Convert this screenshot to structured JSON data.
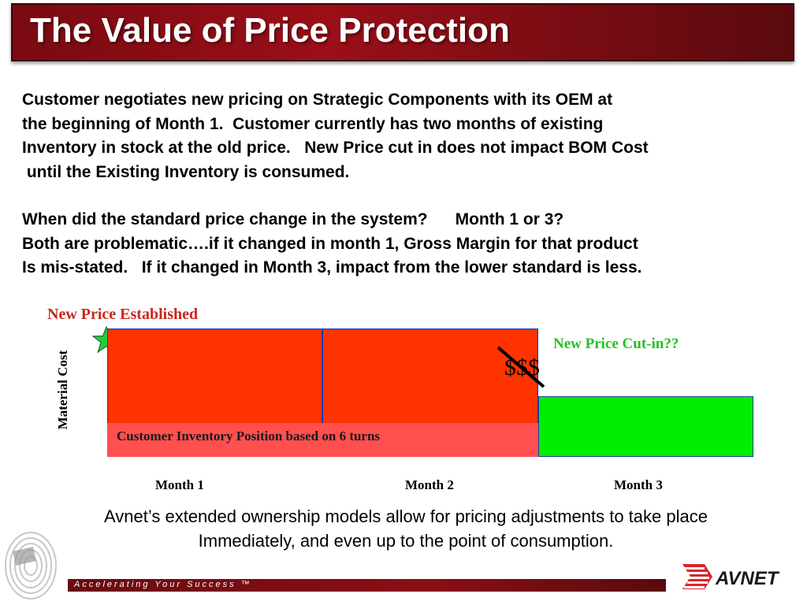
{
  "slide": {
    "title": "The Value of Price Protection",
    "paragraph_lines": [
      "Customer negotiates new pricing on Strategic Components with its OEM at",
      "the beginning of Month 1.  Customer currently has two months of existing",
      "Inventory in stock at the old price.   New Price cut in does not impact BOM Cost",
      " until the Existing Inventory is consumed.",
      "When did the standard price change in the system?      Month 1 or 3?",
      "Both are problematic….if it changed in month 1, Gross Margin for that product",
      "Is mis-stated.   If it changed in Month 3, impact from the lower standard is less."
    ]
  },
  "chart_data": {
    "type": "bar",
    "categories": [
      "Month 1",
      "Month 2",
      "Month 3"
    ],
    "ylabel": "Material Cost",
    "annotations": {
      "new_price": "New Price Established",
      "cut_in": "New Price Cut-in??",
      "dollars": "$$$",
      "inventory": "Customer Inventory Position based on 6 turns"
    },
    "colors": {
      "old_price": "#ff3300",
      "new_price": "#00ee00",
      "inventory_band": "#ff4f4f",
      "star": "#22cc44"
    }
  },
  "bottom": {
    "lines": [
      "Avnet’s extended ownership models allow for pricing adjustments to take place",
      "Immediately, and even up to the point of consumption."
    ]
  },
  "footer": {
    "tagline": "Accelerating Your Success ™",
    "logo": "AVNET",
    "logo_icon": "avnet-chevron-logo",
    "watermark_icon": "fingerprint-icon"
  }
}
